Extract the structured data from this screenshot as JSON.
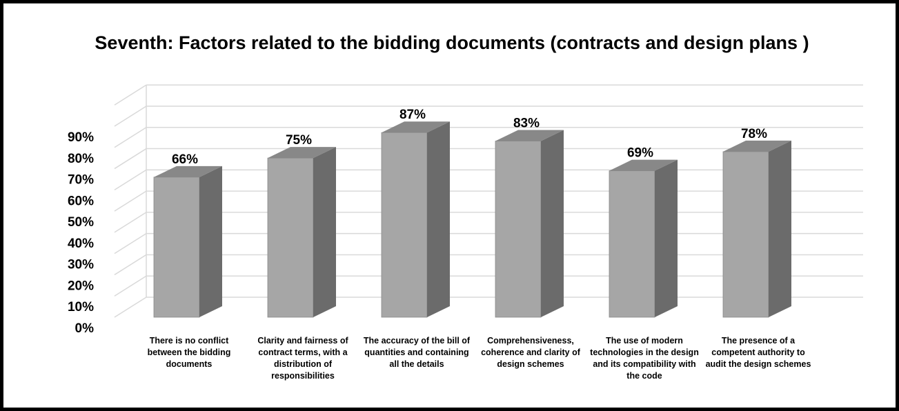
{
  "chart_data": {
    "type": "bar",
    "style": "3d-column",
    "title": "Seventh: Factors related to the bidding documents (contracts and design plans )",
    "categories": [
      "There is no conflict between the bidding documents",
      "Clarity and fairness of contract terms, with a distribution of responsibilities",
      "The accuracy of the bill of quantities and containing all the details",
      "Comprehensiveness, coherence and clarity of design schemes",
      "The use of modern technologies in the design and its compatibility with the code",
      "The presence of a competent authority to audit the design schemes"
    ],
    "values": [
      66,
      75,
      87,
      83,
      69,
      78
    ],
    "data_labels": [
      "66%",
      "75%",
      "87%",
      "83%",
      "69%",
      "78%"
    ],
    "y_ticks": [
      "0%",
      "10%",
      "20%",
      "30%",
      "40%",
      "50%",
      "60%",
      "70%",
      "80%",
      "90%"
    ],
    "ylim": [
      0,
      90
    ],
    "grid": true,
    "legend": "none",
    "colors": {
      "bar_front": "#a6a6a6",
      "bar_side": "#6b6b6b",
      "bar_top": "#888888",
      "gridline": "#d9d9d9",
      "border": "#000000"
    }
  }
}
